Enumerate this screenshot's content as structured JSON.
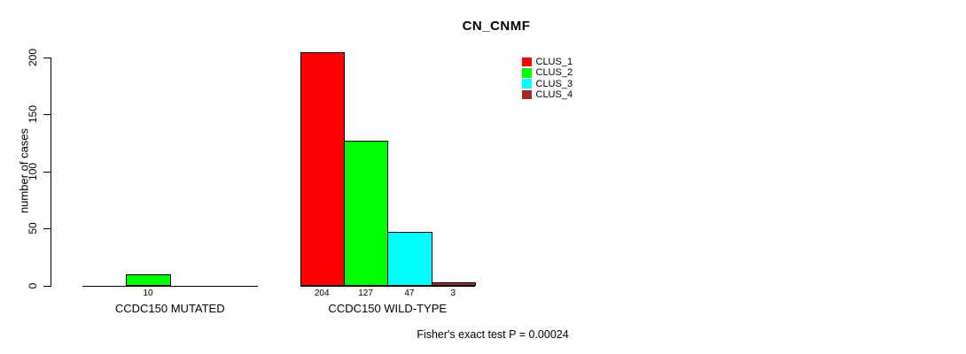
{
  "title": "CN_CNMF",
  "footnote": "Fisher's exact test P = 0.00024",
  "chart_data": {
    "type": "bar",
    "title": "CN_CNMF",
    "xlabel": "",
    "ylabel": "number of cases",
    "ylim": [
      0,
      200
    ],
    "yticks": [
      "0",
      "50",
      "100",
      "150",
      "200"
    ],
    "ytick_values": [
      0,
      50,
      100,
      150,
      200
    ],
    "grid": false,
    "legend_position": "top-right",
    "legend": [
      {
        "label": "CLUS_1",
        "color": "#ff0000"
      },
      {
        "label": "CLUS_2",
        "color": "#00ff00"
      },
      {
        "label": "CLUS_3",
        "color": "#00ffff"
      },
      {
        "label": "CLUS_4",
        "color": "#a52a2a"
      }
    ],
    "groups": [
      {
        "label": "CCDC150 MUTATED",
        "bars": [
          {
            "cluster": "CLUS_2",
            "slot": 1,
            "value": 10,
            "value_label": "10",
            "color": "#00ff00"
          }
        ]
      },
      {
        "label": "CCDC150 WILD-TYPE",
        "bars": [
          {
            "cluster": "CLUS_1",
            "slot": 0,
            "value": 204,
            "value_label": "204",
            "color": "#ff0000"
          },
          {
            "cluster": "CLUS_2",
            "slot": 1,
            "value": 127,
            "value_label": "127",
            "color": "#00ff00"
          },
          {
            "cluster": "CLUS_3",
            "slot": 2,
            "value": 47,
            "value_label": "47",
            "color": "#00ffff"
          },
          {
            "cluster": "CLUS_4",
            "slot": 3,
            "value": 3,
            "value_label": "3",
            "color": "#a52a2a"
          }
        ]
      }
    ],
    "annotation": "Fisher's exact test P = 0.00024"
  }
}
